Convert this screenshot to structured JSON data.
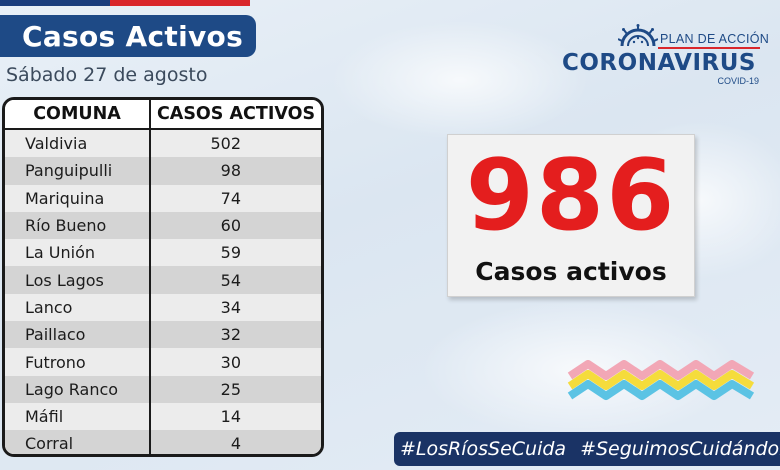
{
  "header": {
    "title": "Casos Activos",
    "date": "Sábado 27 de agosto"
  },
  "logo": {
    "plan": "PLAN DE ACCIÓN",
    "brand": "CORONAVIRUS",
    "sub": "COVID-19"
  },
  "table": {
    "headers": [
      "COMUNA",
      "CASOS ACTIVOS"
    ],
    "rows": [
      {
        "comuna": "Valdivia",
        "casos": "502"
      },
      {
        "comuna": "Panguipulli",
        "casos": "98"
      },
      {
        "comuna": "Mariquina",
        "casos": "74"
      },
      {
        "comuna": "Río Bueno",
        "casos": "60"
      },
      {
        "comuna": "La Unión",
        "casos": "59"
      },
      {
        "comuna": "Los Lagos",
        "casos": "54"
      },
      {
        "comuna": "Lanco",
        "casos": "34"
      },
      {
        "comuna": "Paillaco",
        "casos": "32"
      },
      {
        "comuna": "Futrono",
        "casos": "30"
      },
      {
        "comuna": "Lago Ranco",
        "casos": "25"
      },
      {
        "comuna": "Máfil",
        "casos": "14"
      },
      {
        "comuna": "Corral",
        "casos": "4"
      }
    ]
  },
  "total": {
    "value": "986",
    "label": "Casos activos"
  },
  "hashtags": [
    "#LosRíosSeCuida",
    "#SeguimosCuidándonos"
  ],
  "colors": {
    "navy": "#1e4a86",
    "red": "#e41e1e",
    "hashbar": "#1a3365"
  }
}
